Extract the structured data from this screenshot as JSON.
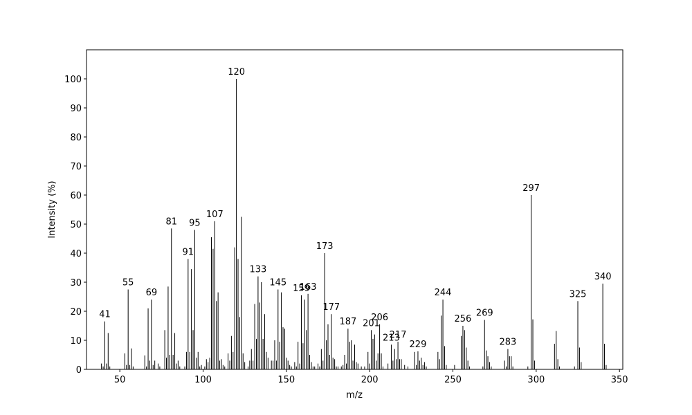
{
  "chart_data": {
    "type": "bar",
    "xlabel": "m/z",
    "ylabel": "Intensity (%)",
    "color": "#000000",
    "x": [
      39,
      40,
      41,
      42,
      43,
      44,
      53,
      54,
      55,
      56,
      57,
      58,
      65,
      66,
      67,
      68,
      69,
      70,
      71,
      73,
      74,
      77,
      78,
      79,
      80,
      81,
      82,
      83,
      84,
      85,
      86,
      89,
      90,
      91,
      92,
      93,
      94,
      95,
      96,
      97,
      98,
      99,
      101,
      102,
      103,
      104,
      105,
      106,
      107,
      108,
      109,
      110,
      111,
      112,
      113,
      115,
      116,
      117,
      118,
      119,
      120,
      121,
      122,
      123,
      124,
      125,
      127,
      128,
      129,
      130,
      131,
      132,
      133,
      134,
      135,
      136,
      137,
      138,
      139,
      141,
      142,
      143,
      144,
      145,
      146,
      147,
      148,
      149,
      150,
      151,
      152,
      153,
      155,
      156,
      157,
      158,
      159,
      160,
      161,
      162,
      163,
      164,
      165,
      166,
      167,
      169,
      170,
      171,
      172,
      173,
      174,
      175,
      176,
      177,
      178,
      179,
      180,
      181,
      183,
      184,
      185,
      186,
      187,
      188,
      189,
      190,
      191,
      192,
      193,
      195,
      197,
      199,
      200,
      201,
      202,
      203,
      204,
      205,
      206,
      207,
      208,
      211,
      213,
      214,
      215,
      216,
      217,
      218,
      219,
      221,
      223,
      227,
      228,
      229,
      230,
      231,
      232,
      233,
      234,
      241,
      242,
      243,
      244,
      245,
      246,
      251,
      255,
      256,
      257,
      258,
      259,
      260,
      268,
      269,
      270,
      271,
      272,
      273,
      281,
      282,
      283,
      284,
      285,
      286,
      295,
      297,
      298,
      299,
      311,
      312,
      313,
      314,
      323,
      325,
      326,
      327,
      340,
      341,
      342
    ],
    "values": [
      2,
      1,
      16.5,
      2,
      12.5,
      1,
      5.5,
      1.5,
      27.5,
      1.5,
      7.2,
      1,
      4.8,
      1,
      21,
      3,
      24,
      1.5,
      3,
      2,
      1,
      13.5,
      4,
      28.5,
      5,
      48.5,
      5,
      12.5,
      2,
      3,
      1,
      1,
      6,
      38,
      6,
      34.5,
      13.5,
      48,
      4,
      6,
      1,
      1.5,
      1,
      3.5,
      2.5,
      4,
      45.5,
      41.5,
      51,
      23.5,
      26.5,
      3,
      3.5,
      1.5,
      1,
      5.5,
      3,
      11.5,
      6,
      42,
      100,
      38,
      18,
      52.5,
      5.5,
      2.5,
      1,
      3,
      7,
      3,
      22.5,
      10.5,
      32,
      23,
      30,
      10.5,
      19,
      6,
      4,
      3,
      3,
      10,
      3,
      27.5,
      9.5,
      26.5,
      14.5,
      14,
      4,
      3,
      1.5,
      1,
      2.5,
      1,
      9.5,
      2,
      25.5,
      9,
      24,
      13.5,
      26,
      5,
      2.5,
      1,
      1,
      2,
      1,
      7,
      3,
      40,
      10,
      15.5,
      5,
      19,
      4,
      3.5,
      1,
      1,
      1,
      1.5,
      5,
      2,
      14,
      9.5,
      10,
      3,
      8.5,
      2.5,
      2,
      1,
      1,
      6,
      2,
      13.5,
      10.5,
      12,
      3,
      5.5,
      15.5,
      5.5,
      1,
      2,
      8.5,
      3,
      7,
      3.5,
      9.5,
      3.5,
      3.5,
      1.5,
      1,
      6,
      1.5,
      6.2,
      3,
      4,
      1.5,
      2.5,
      1,
      6,
      3.5,
      18.5,
      24,
      8,
      1.5,
      1.5,
      11.5,
      15,
      13.5,
      7.5,
      3,
      1,
      1,
      17,
      6.5,
      4.5,
      2.5,
      1,
      3,
      1,
      7,
      4.5,
      4.5,
      1,
      1,
      60,
      17.2,
      3,
      8.8,
      13.2,
      3.5,
      1,
      1,
      23.5,
      7.5,
      2.5,
      29.5,
      8.8,
      1.5
    ],
    "annotations": [
      41,
      55,
      69,
      81,
      91,
      95,
      107,
      120,
      133,
      145,
      159,
      163,
      173,
      177,
      187,
      201,
      206,
      213,
      217,
      229,
      244,
      256,
      269,
      283,
      297,
      325,
      340
    ],
    "xlim": [
      30,
      352
    ],
    "ylim": [
      0,
      110
    ],
    "xticks": [
      50,
      100,
      150,
      200,
      250,
      300,
      350
    ],
    "yticks": [
      0,
      10,
      20,
      30,
      40,
      50,
      60,
      70,
      80,
      90,
      100
    ]
  }
}
